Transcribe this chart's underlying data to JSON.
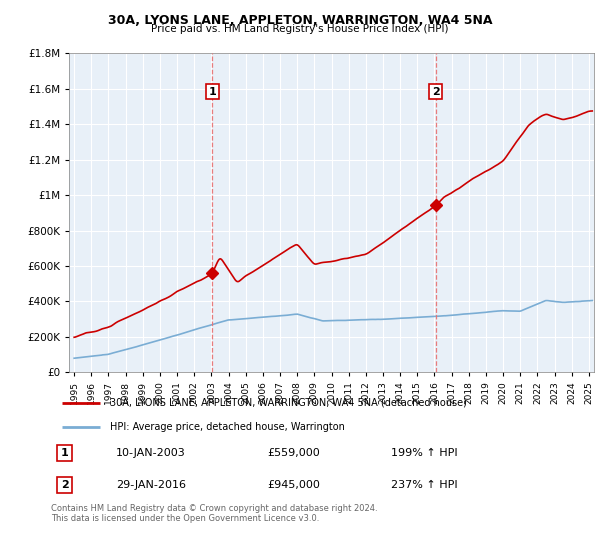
{
  "title": "30A, LYONS LANE, APPLETON, WARRINGTON, WA4 5NA",
  "subtitle": "Price paid vs. HM Land Registry's House Price Index (HPI)",
  "legend_line1": "30A, LYONS LANE, APPLETON, WARRINGTON, WA4 5NA (detached house)",
  "legend_line2": "HPI: Average price, detached house, Warrington",
  "sale1_date": 2003.05,
  "sale1_price": 559000,
  "sale1_label": "10-JAN-2003",
  "sale1_pct": "199% ↑ HPI",
  "sale2_date": 2016.08,
  "sale2_price": 945000,
  "sale2_label": "29-JAN-2016",
  "sale2_pct": "237% ↑ HPI",
  "footnote1": "Contains HM Land Registry data © Crown copyright and database right 2024.",
  "footnote2": "This data is licensed under the Open Government Licence v3.0.",
  "red_color": "#cc0000",
  "blue_color": "#7aadd4",
  "dashed_color": "#e87070",
  "chart_bg": "#e8f0f8",
  "ylim": [
    0,
    1800000
  ],
  "xlim_start": 1994.7,
  "xlim_end": 2025.3
}
